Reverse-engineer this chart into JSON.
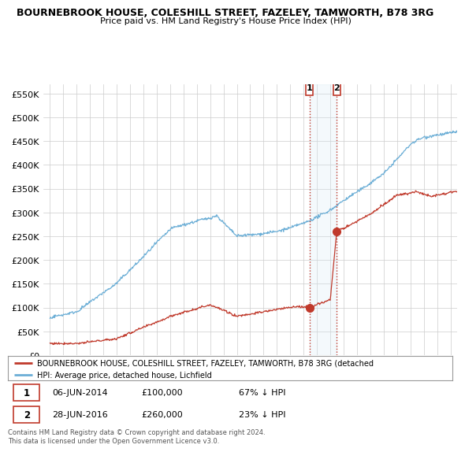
{
  "title": "BOURNEBROOK HOUSE, COLESHILL STREET, FAZELEY, TAMWORTH, B78 3RG",
  "subtitle": "Price paid vs. HM Land Registry's House Price Index (HPI)",
  "hpi_color": "#6baed6",
  "price_color": "#c0392b",
  "annotation_color": "#c0392b",
  "shade_color": "#d6e8f5",
  "background_color": "#ffffff",
  "grid_color": "#cccccc",
  "ylim": [
    0,
    570000
  ],
  "yticks": [
    0,
    50000,
    100000,
    150000,
    200000,
    250000,
    300000,
    350000,
    400000,
    450000,
    500000,
    550000
  ],
  "xlim_start": 1994.5,
  "xlim_end": 2025.5,
  "transaction1_date": 2014.44,
  "transaction1_price": 100000,
  "transaction2_date": 2016.49,
  "transaction2_price": 260000,
  "legend_entry1": "BOURNEBROOK HOUSE, COLESHILL STREET, FAZELEY, TAMWORTH, B78 3RG (detached",
  "legend_entry2": "HPI: Average price, detached house, Lichfield",
  "table_row1": [
    "1",
    "06-JUN-2014",
    "£100,000",
    "67% ↓ HPI"
  ],
  "table_row2": [
    "2",
    "28-JUN-2016",
    "£260,000",
    "23% ↓ HPI"
  ],
  "footnote": "Contains HM Land Registry data © Crown copyright and database right 2024.\nThis data is licensed under the Open Government Licence v3.0."
}
